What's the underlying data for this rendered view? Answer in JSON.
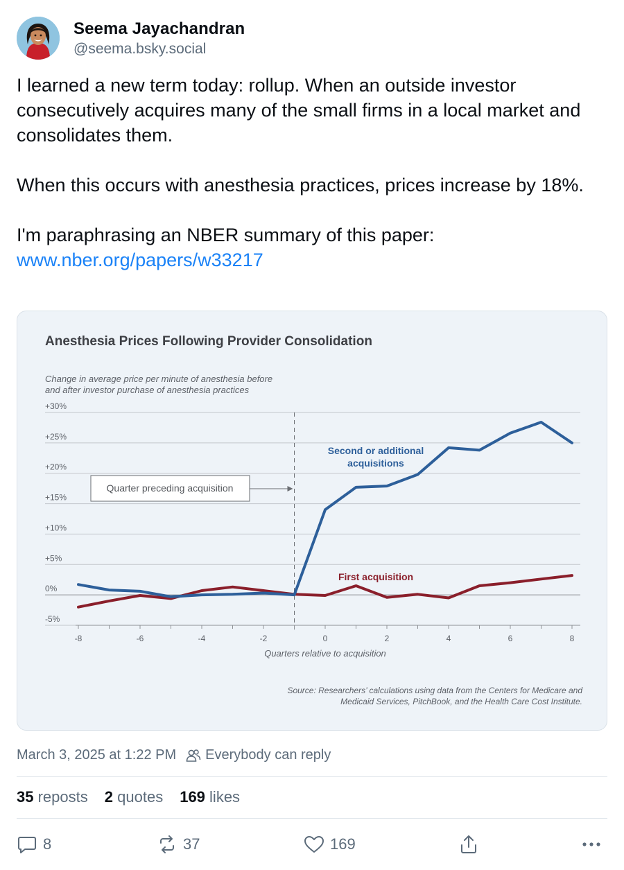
{
  "post": {
    "author_name": "Seema Jayachandran",
    "author_handle": "@seema.bsky.social",
    "text_line1": "I learned a new term today: rollup. When an outside investor consecutively acquires many of the small firms in a local market and consolidates them.",
    "text_line2": "When this occurs with anesthesia practices, prices increase by 18%.",
    "text_line3": "I'm paraphrasing an NBER summary of this paper: ",
    "link_text": "www.nber.org/papers/w33217",
    "timestamp": "March 3, 2025 at 1:22 PM",
    "reply_setting": "Everybody can reply"
  },
  "stats": {
    "reposts_count": "35",
    "reposts_label": "reposts",
    "quotes_count": "2",
    "quotes_label": "quotes",
    "likes_count": "169",
    "likes_label": "likes"
  },
  "actions": {
    "reply_count": "8",
    "repost_count": "37",
    "like_count": "169"
  },
  "colors": {
    "accent": "#1a82f7",
    "second_series": "#2d5f9a",
    "first_series": "#8a1f2b"
  },
  "chart_data": {
    "type": "line",
    "title": "Anesthesia Prices Following Provider Consolidation",
    "subtitle_line1": "Change in average price per minute of anesthesia before",
    "subtitle_line2": "and after investor purchase of anesthesia practices",
    "xlabel": "Quarters relative to acquisition",
    "ylim": [
      -5,
      30
    ],
    "xlim": [
      -8,
      8
    ],
    "y_ticks": [
      -5,
      0,
      5,
      10,
      15,
      20,
      25,
      30
    ],
    "y_tick_labels": [
      "-5%",
      "0%",
      "+5%",
      "+10%",
      "+15%",
      "+20%",
      "+25%",
      "+30%"
    ],
    "x_ticks": [
      -8,
      -6,
      -4,
      -2,
      0,
      2,
      4,
      6,
      8
    ],
    "x_tick_labels": [
      "-8",
      "-6",
      "-4",
      "-2",
      "0",
      "2",
      "4",
      "6",
      "8"
    ],
    "x": [
      -8,
      -7,
      -6,
      -5,
      -4,
      -3,
      -2,
      -1,
      0,
      1,
      2,
      3,
      4,
      5,
      6,
      7,
      8
    ],
    "series": [
      {
        "name": "Second or additional acquisitions",
        "label_line1": "Second or additional",
        "label_line2": "acquisitions",
        "color": "#2d5f9a",
        "values": [
          1.7,
          0.8,
          0.6,
          -0.3,
          0.0,
          0.1,
          0.3,
          0.0,
          14.0,
          17.7,
          17.9,
          19.8,
          24.2,
          23.8,
          26.6,
          28.4,
          25.0
        ]
      },
      {
        "name": "First acquisition",
        "label_line1": "First acquisition",
        "color": "#8a1f2b",
        "values": [
          -2.0,
          -1.0,
          -0.1,
          -0.6,
          0.7,
          1.3,
          0.7,
          0.1,
          -0.1,
          1.5,
          -0.4,
          0.1,
          -0.5,
          1.5,
          2.0,
          2.6,
          3.2
        ]
      }
    ],
    "annotation": "Quarter preceding acquisition",
    "annotation_x": -1,
    "grid": true,
    "source_line1": "Source: Researchers’ calculations using data from the Centers for Medicare and",
    "source_line2": "Medicaid Services, PitchBook, and the Health Care Cost Institute."
  }
}
